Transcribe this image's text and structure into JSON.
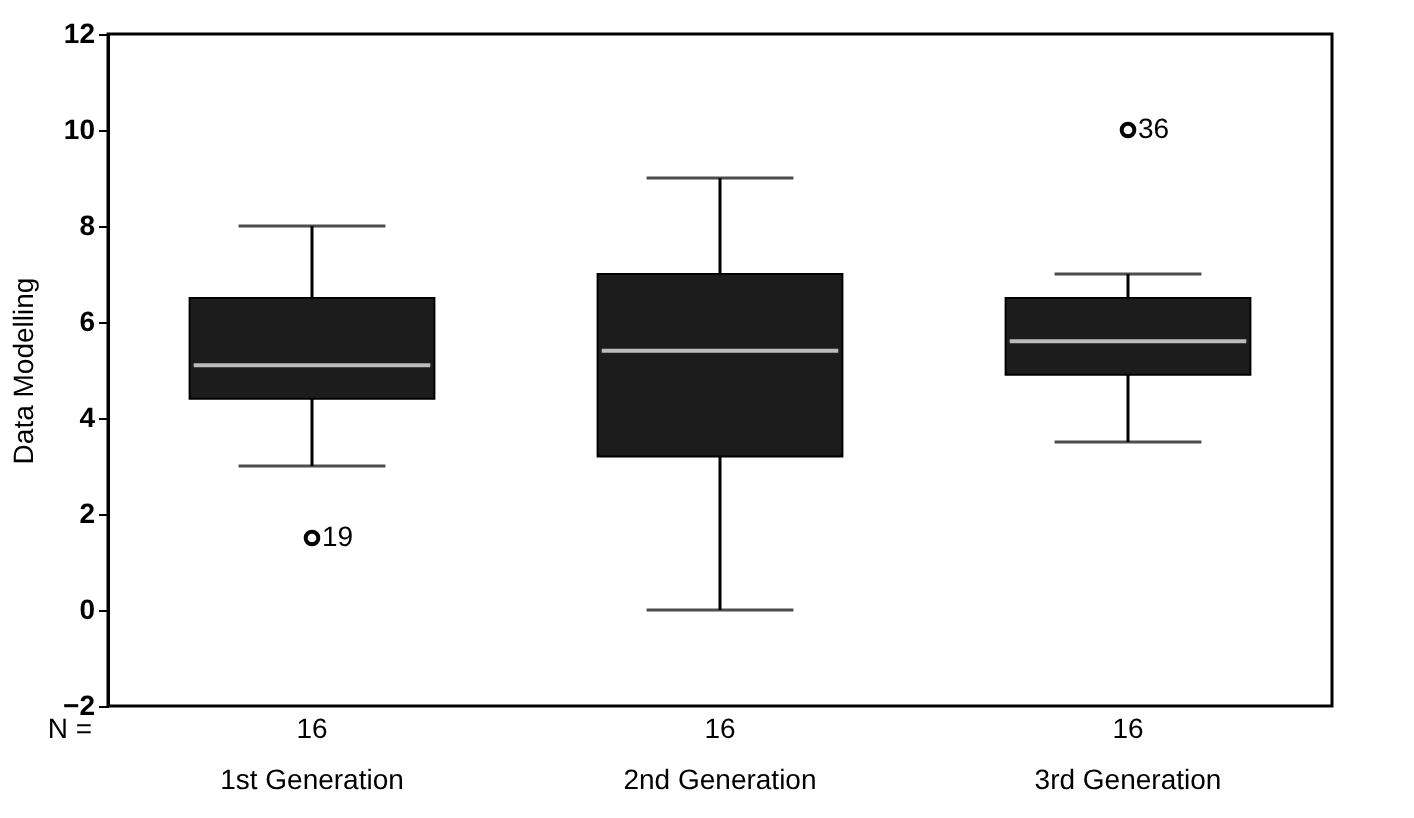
{
  "chart_data": {
    "type": "box",
    "ylabel": "Data Modelling",
    "categories": [
      "1st Generation",
      "2nd Generation",
      "3rd Generation"
    ],
    "boxes": [
      {
        "low": 3,
        "q1": 4.4,
        "median": 5.1,
        "q3": 6.5,
        "high": 8,
        "outliers": [
          1.5
        ]
      },
      {
        "low": 0,
        "q1": 3.2,
        "median": 5.4,
        "q3": 7.0,
        "high": 9
      },
      {
        "low": 3.5,
        "q1": 4.9,
        "median": 5.6,
        "q3": 6.5,
        "high": 7,
        "outliers": [
          10
        ]
      }
    ],
    "color": "#1c1c1c",
    "ylim": [
      -2,
      12
    ],
    "yticks": [
      -2,
      0,
      2,
      4,
      6,
      8,
      10,
      12
    ],
    "grid": false,
    "marker": "circle",
    "annotations": [
      "N =",
      "16",
      "16",
      "16",
      "19",
      "36"
    ]
  }
}
